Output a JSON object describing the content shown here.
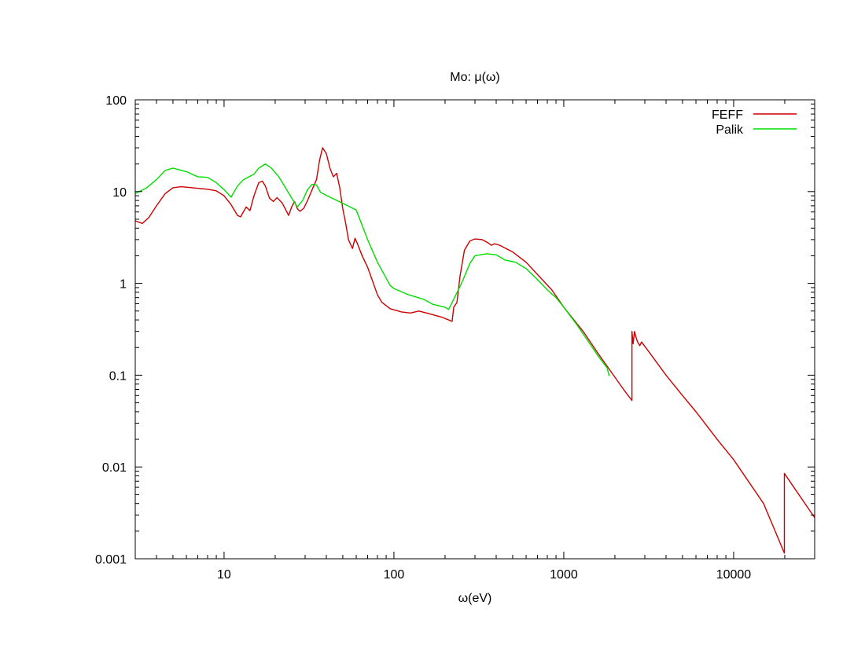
{
  "chart_data": {
    "type": "line",
    "title": "Mo: μ(ω)",
    "xlabel": "ω(eV)",
    "ylabel": "",
    "x_scale": "log",
    "y_scale": "log",
    "xlim": [
      3,
      30000
    ],
    "ylim": [
      0.001,
      100
    ],
    "x_ticks": [
      10,
      100,
      1000,
      10000
    ],
    "x_tick_labels": [
      "10",
      "100",
      "1000",
      "10000"
    ],
    "y_ticks": [
      0.001,
      0.01,
      0.1,
      1,
      10,
      100
    ],
    "y_tick_labels": [
      "0.001",
      "0.01",
      "0.1",
      "1",
      "10",
      "100"
    ],
    "grid": false,
    "legend_position": "top-right",
    "series": [
      {
        "name": "FEFF",
        "color": "#cc0000",
        "points": [
          [
            3.0,
            4.8
          ],
          [
            3.3,
            4.5
          ],
          [
            3.6,
            5.2
          ],
          [
            4.0,
            7.0
          ],
          [
            4.5,
            9.5
          ],
          [
            5.0,
            11.0
          ],
          [
            5.6,
            11.3
          ],
          [
            6.5,
            11.0
          ],
          [
            8.0,
            10.6
          ],
          [
            9.0,
            10.2
          ],
          [
            10.0,
            9.0
          ],
          [
            11.0,
            7.2
          ],
          [
            12.0,
            5.5
          ],
          [
            12.5,
            5.3
          ],
          [
            13.5,
            6.8
          ],
          [
            14.2,
            6.2
          ],
          [
            15.0,
            9.0
          ],
          [
            16.0,
            12.5
          ],
          [
            16.8,
            13.0
          ],
          [
            17.5,
            11.5
          ],
          [
            18.5,
            8.5
          ],
          [
            19.5,
            7.8
          ],
          [
            20.5,
            8.6
          ],
          [
            22.0,
            7.5
          ],
          [
            24.0,
            5.5
          ],
          [
            25.0,
            6.8
          ],
          [
            26.0,
            7.8
          ],
          [
            27.0,
            6.5
          ],
          [
            28.0,
            6.1
          ],
          [
            29.5,
            6.6
          ],
          [
            31.0,
            8.0
          ],
          [
            33.0,
            10.5
          ],
          [
            35.0,
            13.5
          ],
          [
            36.5,
            22.0
          ],
          [
            38.0,
            30.0
          ],
          [
            40.0,
            26.0
          ],
          [
            42.0,
            18.0
          ],
          [
            44.0,
            14.5
          ],
          [
            46.0,
            15.8
          ],
          [
            48.0,
            11.0
          ],
          [
            50.0,
            6.5
          ],
          [
            52.0,
            4.5
          ],
          [
            54.0,
            3.0
          ],
          [
            57.0,
            2.4
          ],
          [
            59.0,
            3.1
          ],
          [
            61.0,
            2.7
          ],
          [
            65.0,
            2.0
          ],
          [
            70.0,
            1.5
          ],
          [
            75.0,
            1.05
          ],
          [
            80.0,
            0.75
          ],
          [
            85.0,
            0.62
          ],
          [
            95.0,
            0.53
          ],
          [
            110.0,
            0.49
          ],
          [
            125.0,
            0.475
          ],
          [
            140.0,
            0.5
          ],
          [
            160.0,
            0.47
          ],
          [
            190.0,
            0.43
          ],
          [
            210.0,
            0.4
          ],
          [
            220.0,
            0.385
          ],
          [
            225.0,
            0.55
          ],
          [
            235.0,
            0.62
          ],
          [
            245.0,
            1.2
          ],
          [
            260.0,
            2.3
          ],
          [
            280.0,
            2.9
          ],
          [
            300.0,
            3.05
          ],
          [
            330.0,
            3.0
          ],
          [
            360.0,
            2.75
          ],
          [
            375.0,
            2.6
          ],
          [
            390.0,
            2.7
          ],
          [
            420.0,
            2.6
          ],
          [
            500.0,
            2.2
          ],
          [
            600.0,
            1.7
          ],
          [
            700.0,
            1.25
          ],
          [
            850.0,
            0.85
          ],
          [
            1000.0,
            0.55
          ],
          [
            1300.0,
            0.3
          ],
          [
            1600.0,
            0.17
          ],
          [
            2000.0,
            0.095
          ],
          [
            2300.0,
            0.066
          ],
          [
            2520.0,
            0.053
          ],
          [
            2520.0,
            0.3
          ],
          [
            2560.0,
            0.22
          ],
          [
            2610.0,
            0.3
          ],
          [
            2660.0,
            0.26
          ],
          [
            2720.0,
            0.23
          ],
          [
            2800.0,
            0.21
          ],
          [
            2870.0,
            0.23
          ],
          [
            3100.0,
            0.19
          ],
          [
            4000.0,
            0.1
          ],
          [
            5000.0,
            0.06
          ],
          [
            6000.0,
            0.04
          ],
          [
            8000.0,
            0.02
          ],
          [
            10000.0,
            0.012
          ],
          [
            15000.0,
            0.004
          ],
          [
            19900.0,
            0.00115
          ],
          [
            19900.0,
            0.0085
          ],
          [
            30000.0,
            0.0028
          ]
        ]
      },
      {
        "name": "Palik",
        "color": "#00dd00",
        "points": [
          [
            3.0,
            9.5
          ],
          [
            3.5,
            11.0
          ],
          [
            4.0,
            13.5
          ],
          [
            4.5,
            17.0
          ],
          [
            5.0,
            18.0
          ],
          [
            6.0,
            16.5
          ],
          [
            7.0,
            14.5
          ],
          [
            8.0,
            14.3
          ],
          [
            9.0,
            12.5
          ],
          [
            10.0,
            10.5
          ],
          [
            11.0,
            8.7
          ],
          [
            12.0,
            11.5
          ],
          [
            13.0,
            13.5
          ],
          [
            14.0,
            14.5
          ],
          [
            15.0,
            15.5
          ],
          [
            16.0,
            18.0
          ],
          [
            17.5,
            20.0
          ],
          [
            19.0,
            18.0
          ],
          [
            21.0,
            14.5
          ],
          [
            23.0,
            11.0
          ],
          [
            25.0,
            8.5
          ],
          [
            27.0,
            6.8
          ],
          [
            29.0,
            8.0
          ],
          [
            31.0,
            10.5
          ],
          [
            33.0,
            12.0
          ],
          [
            35.0,
            11.8
          ],
          [
            37.0,
            9.8
          ],
          [
            42.0,
            8.7
          ],
          [
            52.0,
            7.2
          ],
          [
            60.0,
            6.3
          ],
          [
            70.0,
            3.0
          ],
          [
            80.0,
            1.7
          ],
          [
            95.0,
            0.95
          ],
          [
            100.0,
            0.88
          ],
          [
            120.0,
            0.76
          ],
          [
            150.0,
            0.67
          ],
          [
            170.0,
            0.59
          ],
          [
            200.0,
            0.55
          ],
          [
            210.0,
            0.52
          ],
          [
            250.0,
            1.0
          ],
          [
            280.0,
            1.65
          ],
          [
            300.0,
            2.0
          ],
          [
            350.0,
            2.1
          ],
          [
            400.0,
            2.05
          ],
          [
            450.0,
            1.8
          ],
          [
            520.0,
            1.7
          ],
          [
            600.0,
            1.45
          ],
          [
            700.0,
            1.1
          ],
          [
            800.0,
            0.85
          ],
          [
            900.0,
            0.7
          ],
          [
            1000.0,
            0.55
          ],
          [
            1200.0,
            0.35
          ],
          [
            1400.0,
            0.23
          ],
          [
            1600.0,
            0.16
          ],
          [
            1800.0,
            0.12
          ],
          [
            1850.0,
            0.098
          ]
        ]
      }
    ]
  }
}
